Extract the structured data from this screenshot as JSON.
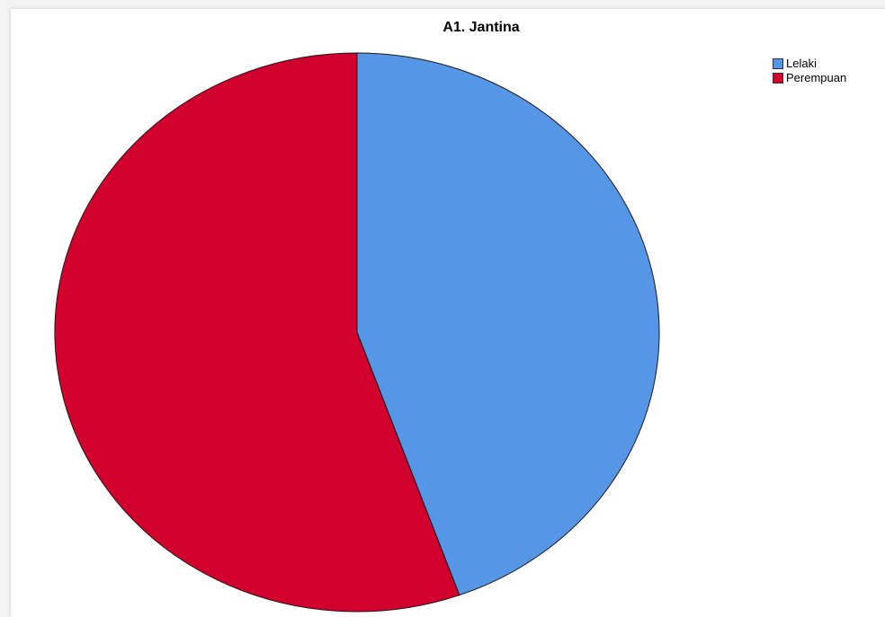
{
  "chart_data": {
    "type": "pie",
    "title": "A1. Jantina",
    "categories": [
      "Lelaki",
      "Perempuan"
    ],
    "values": [
      44.5,
      55.5
    ],
    "colors": [
      "#5596e6",
      "#d2002d"
    ],
    "legend_position": "top-right",
    "start_angle_degrees": 0,
    "direction": "clockwise"
  }
}
